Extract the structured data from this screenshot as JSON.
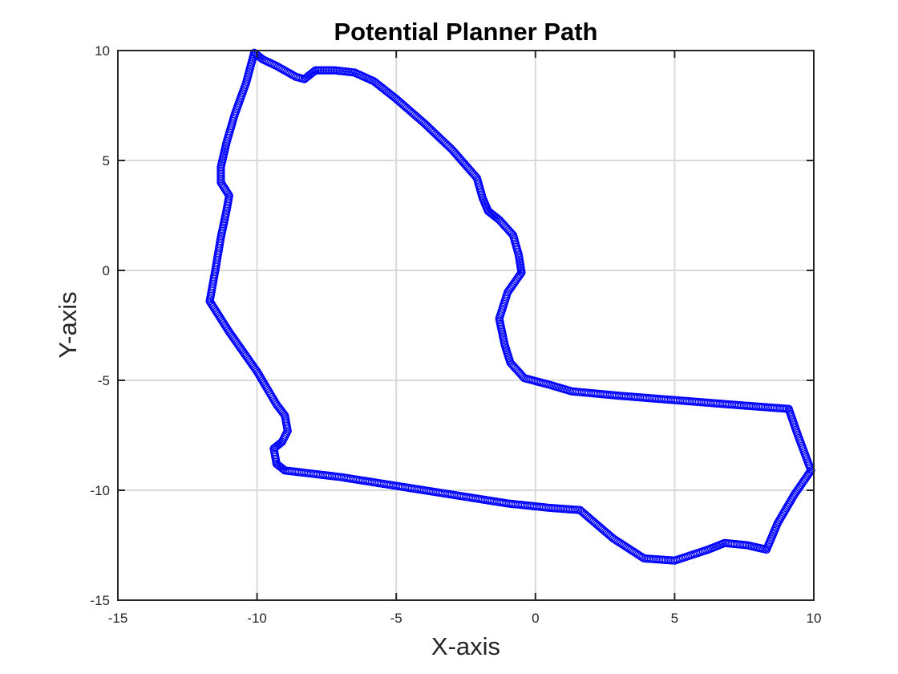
{
  "chart_data": {
    "type": "scatter",
    "title": "Potential Planner Path",
    "xlabel": "X-axis",
    "ylabel": "Y-axis",
    "xlim": [
      -15,
      10
    ],
    "ylim": [
      -15,
      10
    ],
    "xticks": [
      -15,
      -10,
      -5,
      0,
      5,
      10
    ],
    "yticks": [
      -15,
      -10,
      -5,
      0,
      5,
      10
    ],
    "xtick_labels": [
      "-15",
      "-10",
      "-5",
      "0",
      "5",
      "10"
    ],
    "ytick_labels": [
      "-15",
      "-10",
      "-5",
      "0",
      "5",
      "10"
    ],
    "grid": true,
    "marker": "circle-open",
    "color": "#0000FF",
    "series": [
      {
        "points": [
          [
            -10.1,
            9.9
          ],
          [
            -9.8,
            9.6
          ],
          [
            -9.3,
            9.3
          ],
          [
            -8.6,
            8.8
          ],
          [
            -8.3,
            8.7
          ],
          [
            -7.9,
            9.1
          ],
          [
            -7.2,
            9.1
          ],
          [
            -6.5,
            9.0
          ],
          [
            -5.8,
            8.6
          ],
          [
            -5.0,
            7.8
          ],
          [
            -4.0,
            6.7
          ],
          [
            -3.0,
            5.5
          ],
          [
            -2.1,
            4.2
          ],
          [
            -1.9,
            3.3
          ],
          [
            -1.7,
            2.7
          ],
          [
            -1.3,
            2.3
          ],
          [
            -0.8,
            1.6
          ],
          [
            -0.6,
            0.7
          ],
          [
            -0.5,
            -0.1
          ],
          [
            -1.0,
            -1.0
          ],
          [
            -1.3,
            -2.2
          ],
          [
            -1.1,
            -3.4
          ],
          [
            -0.9,
            -4.2
          ],
          [
            -0.4,
            -4.9
          ],
          [
            0.5,
            -5.2
          ],
          [
            1.3,
            -5.5
          ],
          [
            3.0,
            -5.7
          ],
          [
            5.0,
            -5.9
          ],
          [
            7.0,
            -6.1
          ],
          [
            9.1,
            -6.3
          ],
          [
            9.4,
            -7.4
          ],
          [
            9.9,
            -9.1
          ],
          [
            9.3,
            -10.2
          ],
          [
            8.7,
            -11.5
          ],
          [
            8.3,
            -12.7
          ],
          [
            7.6,
            -12.5
          ],
          [
            6.8,
            -12.4
          ],
          [
            6.2,
            -12.7
          ],
          [
            5.0,
            -13.2
          ],
          [
            3.9,
            -13.1
          ],
          [
            2.8,
            -12.2
          ],
          [
            1.6,
            -10.9
          ],
          [
            0.5,
            -10.8
          ],
          [
            -1.0,
            -10.6
          ],
          [
            -3.0,
            -10.2
          ],
          [
            -5.0,
            -9.8
          ],
          [
            -7.0,
            -9.4
          ],
          [
            -9.0,
            -9.1
          ],
          [
            -9.3,
            -8.8
          ],
          [
            -9.4,
            -8.1
          ],
          [
            -9.1,
            -7.8
          ],
          [
            -8.9,
            -7.3
          ],
          [
            -9.0,
            -6.6
          ],
          [
            -9.3,
            -6.1
          ],
          [
            -10.0,
            -4.6
          ],
          [
            -11.0,
            -2.8
          ],
          [
            -11.7,
            -1.4
          ],
          [
            -11.5,
            0.0
          ],
          [
            -11.3,
            1.5
          ],
          [
            -11.1,
            2.7
          ],
          [
            -11.0,
            3.4
          ],
          [
            -11.3,
            4.0
          ],
          [
            -11.3,
            4.7
          ],
          [
            -11.1,
            5.8
          ],
          [
            -10.8,
            7.1
          ],
          [
            -10.4,
            8.5
          ],
          [
            -10.1,
            9.9
          ]
        ]
      }
    ]
  }
}
